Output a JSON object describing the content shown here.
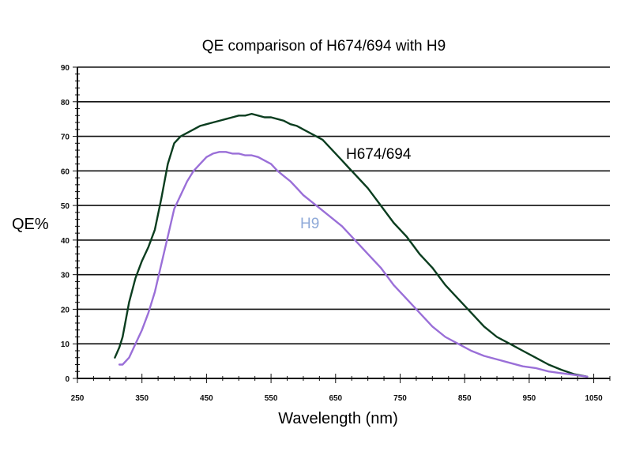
{
  "chart_data": {
    "type": "line",
    "title": "QE comparison of H674/694 with H9",
    "xlabel": "Wavelength (nm)",
    "ylabel": "QE%",
    "xlim": [
      250,
      1075
    ],
    "ylim": [
      0,
      90
    ],
    "xticks": [
      250,
      350,
      450,
      550,
      650,
      750,
      850,
      950,
      1050
    ],
    "yticks": [
      0,
      10,
      20,
      30,
      40,
      50,
      60,
      70,
      80,
      90
    ],
    "grid": true,
    "series": [
      {
        "name": "H674/694",
        "color": "#0b3d1f",
        "x": [
          308,
          315,
          320,
          325,
          330,
          340,
          350,
          360,
          370,
          380,
          390,
          400,
          410,
          420,
          430,
          440,
          450,
          460,
          470,
          480,
          490,
          500,
          510,
          520,
          530,
          540,
          550,
          560,
          570,
          580,
          590,
          600,
          610,
          620,
          630,
          640,
          650,
          660,
          670,
          680,
          690,
          700,
          720,
          740,
          760,
          780,
          800,
          820,
          840,
          860,
          880,
          900,
          920,
          940,
          960,
          980,
          1000,
          1020,
          1040
        ],
        "y": [
          6,
          9,
          12,
          17,
          22,
          29,
          34,
          38,
          43,
          52,
          62,
          68,
          70,
          71,
          72,
          73,
          73.5,
          74,
          74.5,
          75,
          75.5,
          76,
          76,
          76.5,
          76,
          75.5,
          75.5,
          75,
          74.5,
          73.5,
          73,
          72,
          71,
          70,
          69,
          67,
          65,
          63,
          61,
          59,
          57,
          55,
          50,
          45,
          41,
          36,
          32,
          27,
          23,
          19,
          15,
          12,
          10,
          8,
          6,
          4,
          2.5,
          1.2,
          0.5
        ]
      },
      {
        "name": "H9",
        "color": "#9a6fd8",
        "x": [
          315,
          320,
          330,
          340,
          350,
          360,
          370,
          380,
          390,
          400,
          410,
          420,
          430,
          440,
          450,
          460,
          470,
          480,
          490,
          500,
          510,
          520,
          530,
          540,
          550,
          560,
          570,
          580,
          590,
          600,
          620,
          640,
          660,
          680,
          700,
          720,
          740,
          760,
          780,
          800,
          820,
          840,
          860,
          880,
          900,
          920,
          940,
          960,
          980,
          1000,
          1020,
          1040
        ],
        "y": [
          4,
          4,
          6,
          10,
          14,
          19,
          25,
          33,
          41,
          49,
          53,
          57,
          60,
          62,
          64,
          65,
          65.5,
          65.5,
          65,
          65,
          64.5,
          64.5,
          64,
          63,
          62,
          60,
          58.5,
          57,
          55,
          53,
          50,
          47,
          44,
          40,
          36,
          32,
          27,
          23,
          19,
          15,
          12,
          10,
          8,
          6.5,
          5.5,
          4.5,
          3.5,
          3,
          2,
          1.5,
          1,
          0.5
        ]
      }
    ]
  }
}
